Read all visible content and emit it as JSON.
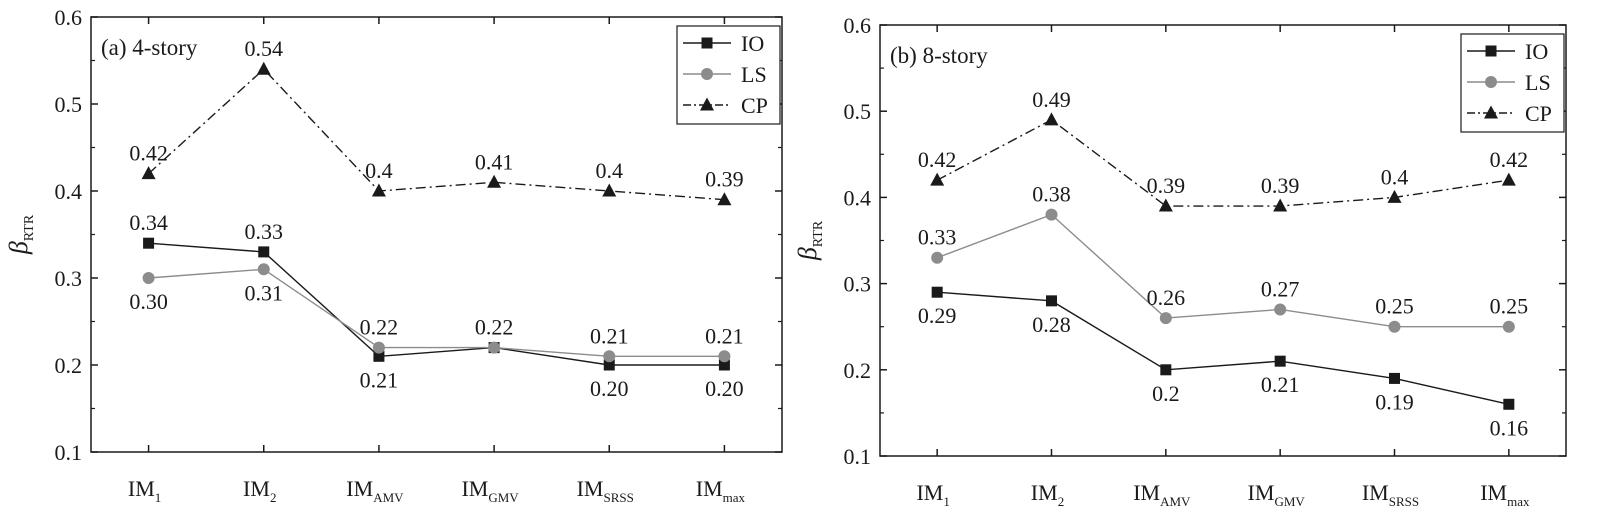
{
  "colors": {
    "IO": "#1a1a1a",
    "LS": "#8c8c8c",
    "CP": "#1a1a1a"
  },
  "chart_data": [
    {
      "type": "line",
      "panel_label": "(a) 4-story",
      "ylabel": {
        "main": "β",
        "sub": "RTR"
      },
      "ylim": [
        0.1,
        0.6
      ],
      "yticks": [
        "0.1",
        "0.2",
        "0.3",
        "0.4",
        "0.5",
        "0.6"
      ],
      "categories": [
        {
          "main": "IM",
          "sub": "1"
        },
        {
          "main": "IM",
          "sub": "2"
        },
        {
          "main": "IM",
          "sub": "AMV"
        },
        {
          "main": "IM",
          "sub": "GMV"
        },
        {
          "main": "IM",
          "sub": "SRSS"
        },
        {
          "main": "IM",
          "sub": "max"
        }
      ],
      "legend_position": "top-right",
      "series": [
        {
          "name": "IO",
          "marker": "square",
          "dash": "solid",
          "values": [
            0.34,
            0.33,
            0.21,
            0.22,
            0.2,
            0.2
          ],
          "labels": [
            "0.34",
            "0.33",
            "0.21",
            "",
            "0.20",
            "0.20"
          ],
          "label_pos": [
            "above",
            "above",
            "below",
            "above",
            "below",
            "below"
          ]
        },
        {
          "name": "LS",
          "marker": "circle",
          "dash": "solid",
          "values": [
            0.3,
            0.31,
            0.22,
            0.22,
            0.21,
            0.21
          ],
          "labels": [
            "0.30",
            "0.31",
            "0.22",
            "0.22",
            "0.21",
            "0.21"
          ],
          "label_pos": [
            "below",
            "below",
            "above",
            "above",
            "above",
            "above"
          ]
        },
        {
          "name": "CP",
          "marker": "triangle",
          "dash": "dashdot",
          "values": [
            0.42,
            0.54,
            0.4,
            0.41,
            0.4,
            0.39
          ],
          "labels": [
            "0.42",
            "0.54",
            "0.4",
            "0.41",
            "0.4",
            "0.39"
          ],
          "label_pos": [
            "above",
            "above",
            "above",
            "above",
            "above",
            "above"
          ]
        }
      ]
    },
    {
      "type": "line",
      "panel_label": "(b) 8-story",
      "ylabel": {
        "main": "β",
        "sub": "RTR"
      },
      "ylim": [
        0.1,
        0.6
      ],
      "yticks": [
        "0.1",
        "0.2",
        "0.3",
        "0.4",
        "0.5",
        "0.6"
      ],
      "categories": [
        {
          "main": "IM",
          "sub": "1"
        },
        {
          "main": "IM",
          "sub": "2"
        },
        {
          "main": "IM",
          "sub": "AMV"
        },
        {
          "main": "IM",
          "sub": "GMV"
        },
        {
          "main": "IM",
          "sub": "SRSS"
        },
        {
          "main": "IM",
          "sub": "max"
        }
      ],
      "legend_position": "top-right",
      "series": [
        {
          "name": "IO",
          "marker": "square",
          "dash": "solid",
          "values": [
            0.29,
            0.28,
            0.2,
            0.21,
            0.19,
            0.16
          ],
          "labels": [
            "0.29",
            "0.28",
            "0.2",
            "0.21",
            "0.19",
            "0.16"
          ],
          "label_pos": [
            "below",
            "below",
            "below",
            "below",
            "below",
            "below"
          ]
        },
        {
          "name": "LS",
          "marker": "circle",
          "dash": "solid",
          "values": [
            0.33,
            0.38,
            0.26,
            0.27,
            0.25,
            0.25
          ],
          "labels": [
            "0.33",
            "0.38",
            "0.26",
            "0.27",
            "0.25",
            "0.25"
          ],
          "label_pos": [
            "above",
            "above",
            "above",
            "above",
            "above",
            "above"
          ]
        },
        {
          "name": "CP",
          "marker": "triangle",
          "dash": "dashdot",
          "values": [
            0.42,
            0.49,
            0.39,
            0.39,
            0.4,
            0.42
          ],
          "labels": [
            "0.42",
            "0.49",
            "0.39",
            "0.39",
            "0.4",
            "0.42"
          ],
          "label_pos": [
            "above",
            "above",
            "above",
            "above",
            "above",
            "above"
          ]
        }
      ]
    }
  ]
}
